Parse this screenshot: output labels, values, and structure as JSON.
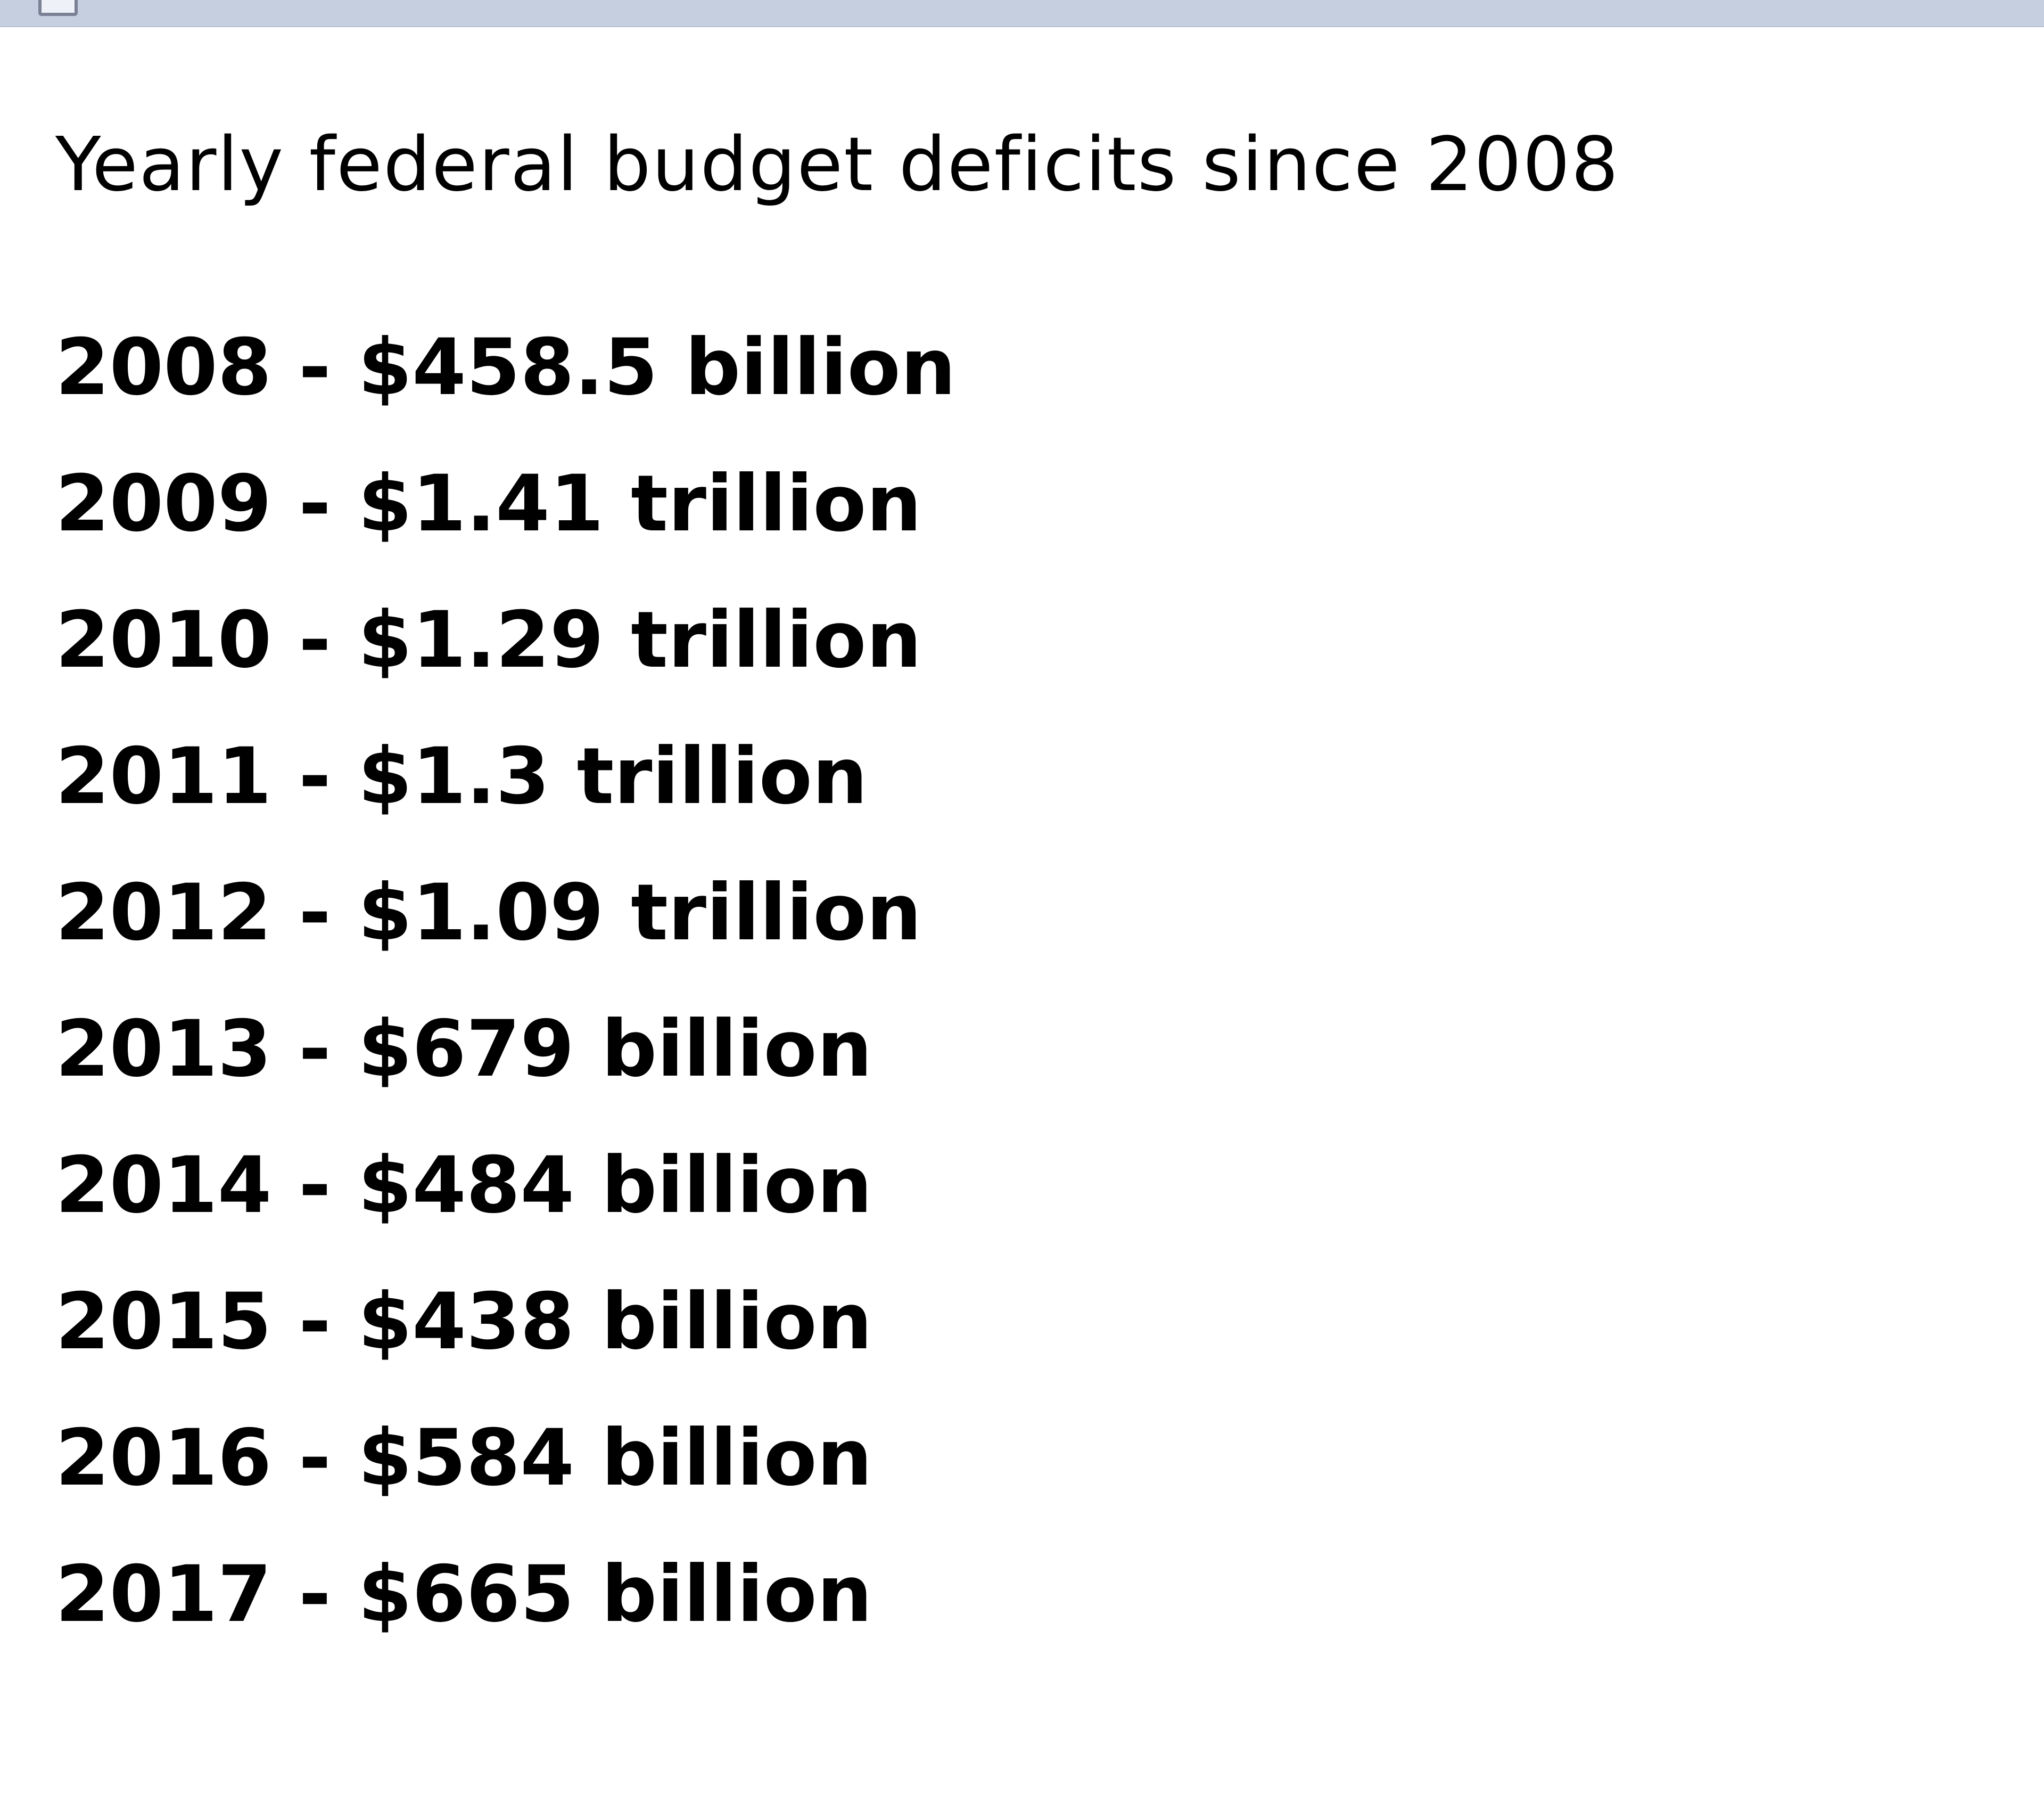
{
  "window": {
    "title_bar_color": "#c6cfe0"
  },
  "document": {
    "heading": "Yearly federal budget deficits since 2008",
    "items": [
      "2008 - $458.5 billion",
      "2009 - $1.41 trillion",
      "2010 - $1.29 trillion",
      "2011 - $1.3 trillion",
      "2012 - $1.09 trillion",
      "2013 - $679 billion",
      "2014 - $484 billion",
      "2015 - $438 billion",
      "2016 - $584 billion",
      "2017 - $665 billion"
    ]
  }
}
